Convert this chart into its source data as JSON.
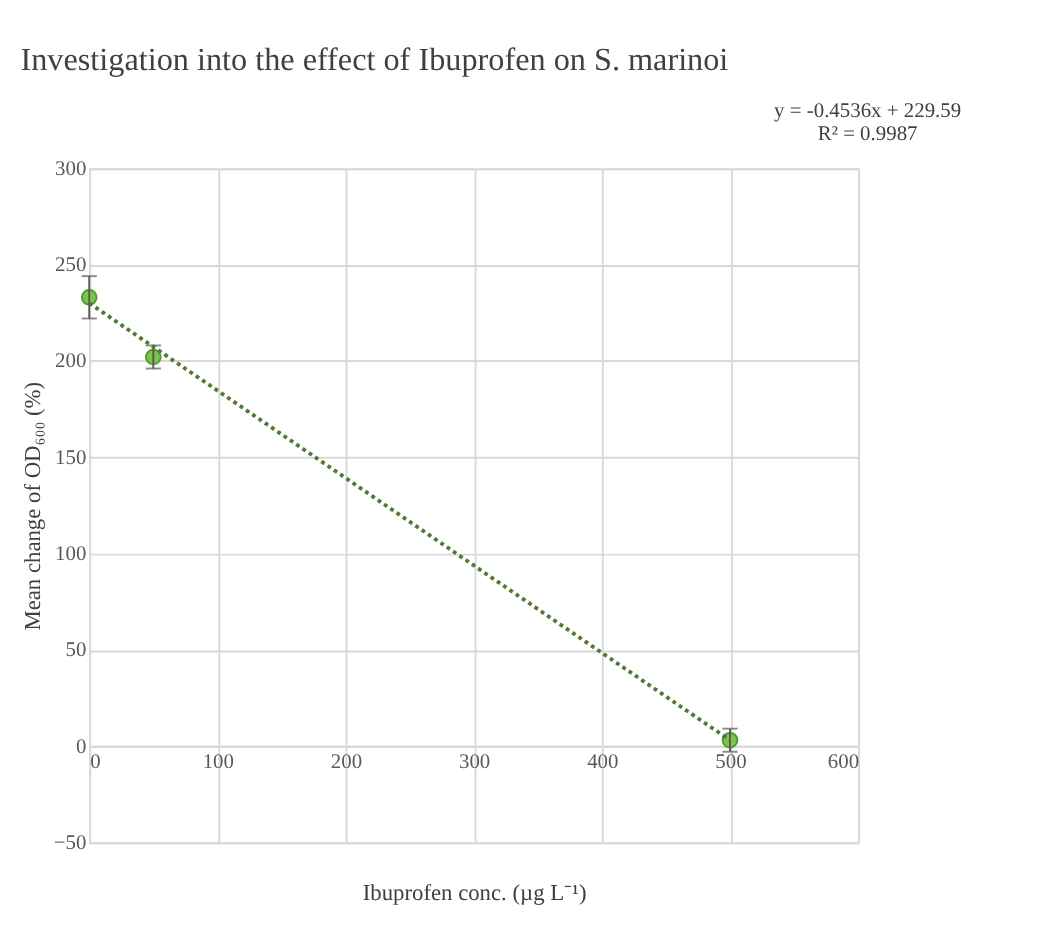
{
  "chart_data": {
    "type": "scatter",
    "title": "Investigation into the effect of Ibuprofen on S. marinoi",
    "xlabel": "Ibuprofen conc. (µg L⁻¹)",
    "ylabel": "Mean change  of OD₆₀₀ (%)",
    "annotations": [
      "y = -0.4536x + 229.59",
      "R² = 0.9987"
    ],
    "series": [
      {
        "color": "#7cc44e",
        "marker": "circle",
        "x": [
          0,
          50,
          500
        ],
        "values": [
          233,
          202,
          3
        ],
        "errors": [
          11,
          6,
          6
        ]
      },
      {
        "type": "line",
        "color": "#4e7a35",
        "line_style": "dotted",
        "marker": "none",
        "x": [
          0,
          500
        ],
        "values": [
          230,
          3
        ]
      }
    ],
    "xlim": [
      0,
      600
    ],
    "xticks": [
      0,
      100,
      200,
      300,
      400,
      500,
      600
    ],
    "ylim": [
      -50,
      300
    ],
    "yticks": [
      -50,
      0,
      50,
      100,
      150,
      200,
      250,
      300
    ],
    "grid": true
  }
}
